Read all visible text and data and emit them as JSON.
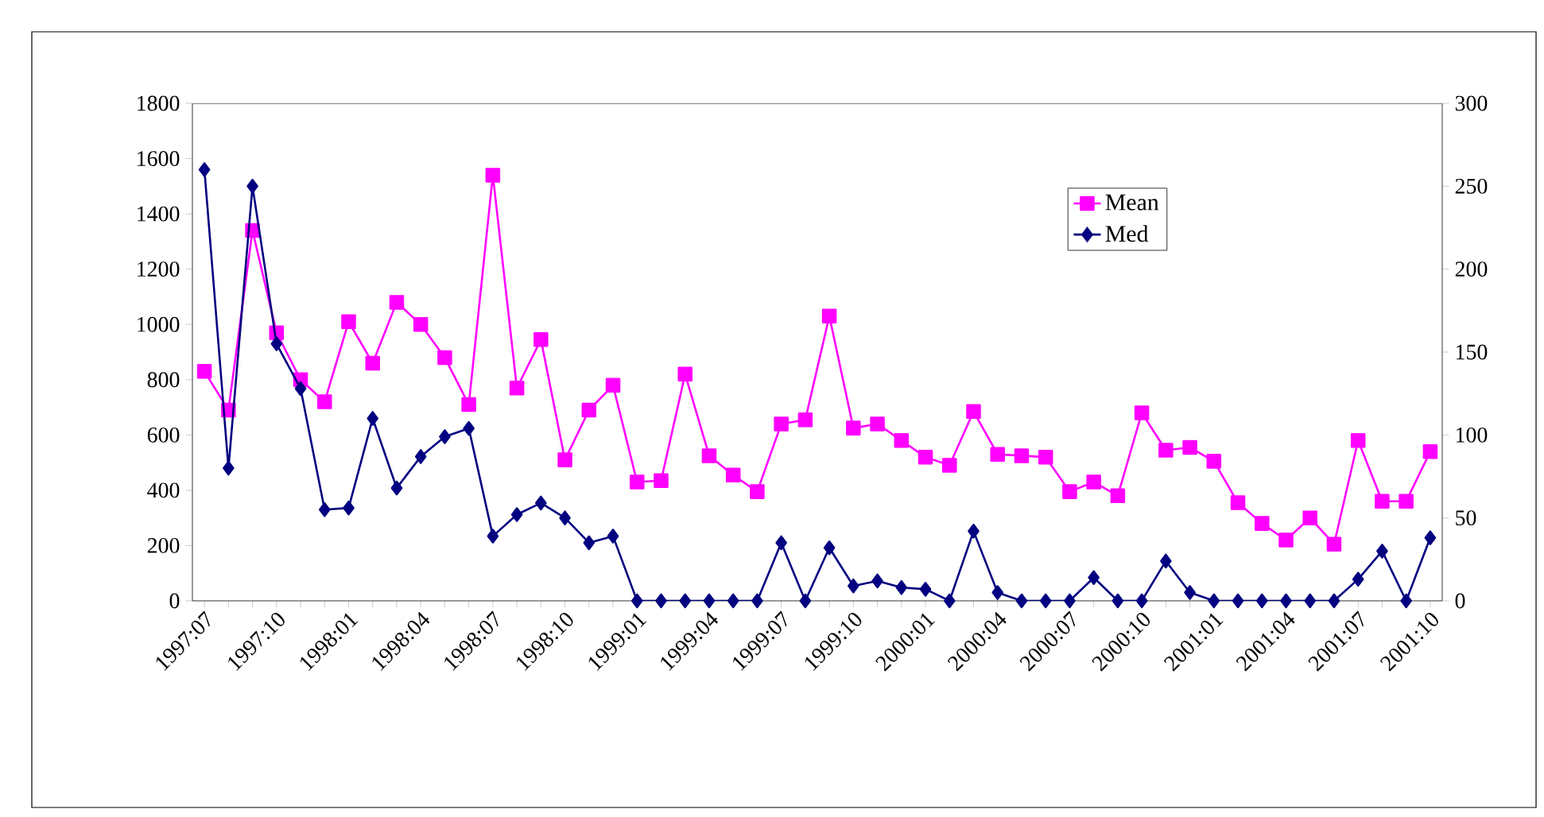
{
  "chart_data": {
    "type": "line",
    "categories": [
      "1997:07",
      null,
      null,
      "1997:10",
      null,
      null,
      "1998:01",
      null,
      null,
      "1998:04",
      null,
      null,
      "1998:07",
      null,
      null,
      "1998:10",
      null,
      null,
      "1999:01",
      null,
      null,
      "1999:04",
      null,
      null,
      "1999:07",
      null,
      null,
      "1999:10",
      null,
      null,
      "2000:01",
      null,
      null,
      "2000:04",
      null,
      null,
      "2000:07",
      null,
      null,
      "2000:10",
      null,
      null,
      "2001:01",
      null,
      null,
      "2001:04",
      null,
      null,
      "2001:07",
      null,
      null,
      "2001:10"
    ],
    "series": [
      {
        "name": "Mean",
        "color": "#ff00ff",
        "marker": "square",
        "axis": "y",
        "values": [
          830,
          690,
          1340,
          970,
          800,
          720,
          1010,
          860,
          1080,
          1000,
          880,
          710,
          1540,
          770,
          945,
          510,
          690,
          780,
          430,
          435,
          820,
          525,
          455,
          395,
          640,
          655,
          1030,
          625,
          640,
          580,
          520,
          490,
          685,
          530,
          525,
          520,
          395,
          430,
          380,
          680,
          545,
          555,
          505,
          355,
          280,
          220,
          300,
          205,
          580,
          360,
          360,
          540
        ]
      },
      {
        "name": "Med",
        "color": "#000080",
        "marker": "diamond",
        "axis": "y2",
        "values": [
          260,
          80,
          250,
          155,
          128,
          55,
          56,
          110,
          68,
          87,
          99,
          104,
          39,
          52,
          59,
          50,
          35,
          39,
          0,
          0,
          0,
          0,
          0,
          0,
          35,
          0,
          32,
          9,
          12,
          8,
          7,
          0,
          42,
          5,
          0,
          0,
          0,
          14,
          0,
          0,
          24,
          5,
          0,
          0,
          0,
          0,
          0,
          0,
          13,
          30,
          0,
          38
        ]
      }
    ],
    "ylim": [
      0,
      1800
    ],
    "yticks": [
      0,
      200,
      400,
      600,
      800,
      1000,
      1200,
      1400,
      1600,
      1800
    ],
    "y2lim": [
      0,
      300
    ],
    "y2ticks": [
      0,
      50,
      100,
      150,
      200,
      250,
      300
    ],
    "legend": "top right",
    "grid": false,
    "line_style": "solid"
  }
}
